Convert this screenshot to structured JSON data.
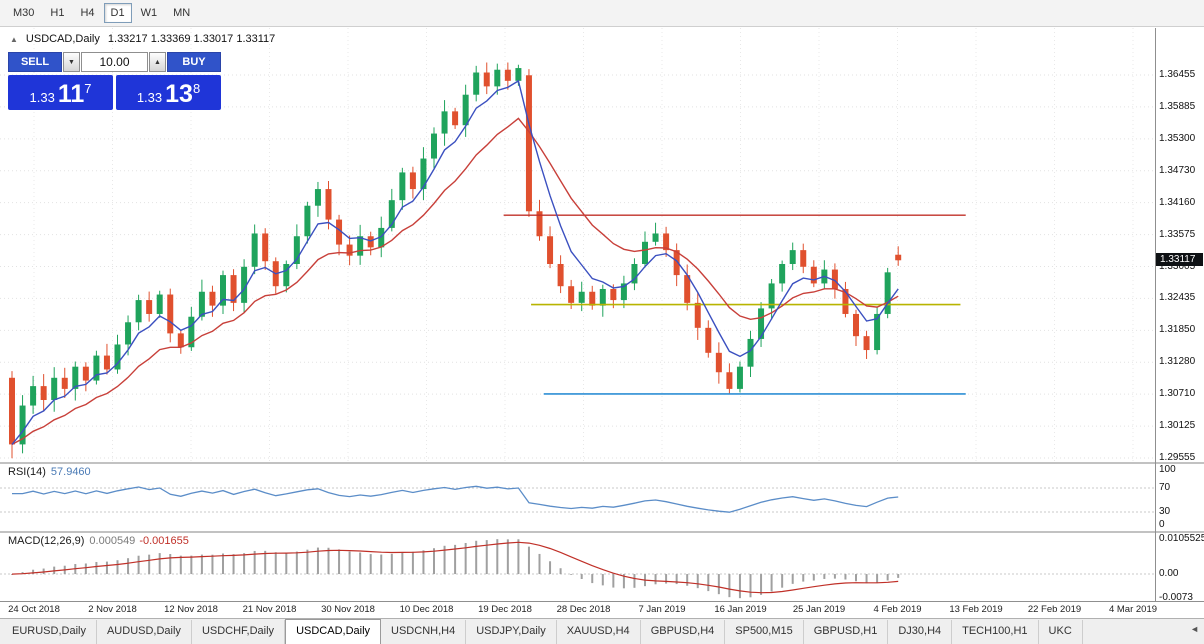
{
  "icons": {
    "collapse": "▲",
    "spin_down": "▼",
    "spin_up": "▲",
    "tab_scroll": "◄"
  },
  "colors": {
    "trade_button_blue": "#3053c9",
    "quote_box_blue": "#1f35d8",
    "badge_bg": "#0e1114"
  },
  "toolbar": {
    "timeframes": [
      {
        "label": "M30",
        "active": false
      },
      {
        "label": "H1",
        "active": false
      },
      {
        "label": "H4",
        "active": false
      },
      {
        "label": "D1",
        "active": true
      },
      {
        "label": "W1",
        "active": false
      },
      {
        "label": "MN",
        "active": false
      }
    ]
  },
  "chart": {
    "symbol": "USDCAD,Daily",
    "ohlc_line": "1.33217 1.33369 1.33017 1.33117",
    "current_price": "1.33117",
    "one_click": {
      "sell_label": "SELL",
      "buy_label": "BUY",
      "volume": "10.00",
      "sell_big": "1.33",
      "sell_mid": "11",
      "sell_sup": "7",
      "buy_big": "1.33",
      "buy_mid": "13",
      "buy_sup": "8"
    }
  },
  "chart_data": {
    "type": "candlestick",
    "title": "USDCAD Daily",
    "y_ticks": [
      "1.36455",
      "1.35885",
      "1.35300",
      "1.34730",
      "1.34160",
      "1.33575",
      "1.33005",
      "1.32435",
      "1.31850",
      "1.31280",
      "1.30710",
      "1.30125",
      "1.29555"
    ],
    "y_top": 1.36455,
    "y_bottom": 1.29555,
    "x_labels": [
      "24 Oct 2018",
      "2 Nov 2018",
      "12 Nov 2018",
      "21 Nov 2018",
      "30 Nov 2018",
      "10 Dec 2018",
      "19 Dec 2018",
      "28 Dec 2018",
      "7 Jan 2019",
      "16 Jan 2019",
      "25 Jan 2019",
      "4 Feb 2019",
      "13 Feb 2019",
      "22 Feb 2019",
      "4 Mar 2019"
    ],
    "first_open": 1.31,
    "closes": [
      1.298,
      1.305,
      1.3085,
      1.306,
      1.31,
      1.308,
      1.312,
      1.3095,
      1.314,
      1.3115,
      1.316,
      1.32,
      1.324,
      1.3215,
      1.325,
      1.318,
      1.3155,
      1.321,
      1.3255,
      1.323,
      1.3285,
      1.3235,
      1.33,
      1.336,
      1.331,
      1.3265,
      1.3305,
      1.3355,
      1.341,
      1.344,
      1.3385,
      1.334,
      1.332,
      1.3355,
      1.3335,
      1.337,
      1.342,
      1.347,
      1.344,
      1.3495,
      1.354,
      1.358,
      1.3555,
      1.361,
      1.365,
      1.3625,
      1.3655,
      1.3635,
      1.3658,
      1.34,
      1.3355,
      1.3305,
      1.3265,
      1.3235,
      1.3255,
      1.323,
      1.326,
      1.324,
      1.327,
      1.3305,
      1.3345,
      1.336,
      1.333,
      1.3285,
      1.3235,
      1.319,
      1.3145,
      1.311,
      1.308,
      1.312,
      1.317,
      1.3225,
      1.327,
      1.3305,
      1.333,
      1.33,
      1.327,
      1.3295,
      1.326,
      1.3215,
      1.3175,
      1.315,
      1.3215,
      1.329,
      1.33117
    ],
    "overrides": [
      {
        "i": 0,
        "o": 1.31,
        "h": 1.3112,
        "l": 1.2955,
        "c": 1.298
      },
      {
        "i": 44,
        "o": 1.361,
        "h": 1.3662,
        "l": 1.3598,
        "c": 1.365
      },
      {
        "i": 46,
        "o": 1.3625,
        "h": 1.3666,
        "l": 1.361,
        "c": 1.3655
      },
      {
        "i": 48,
        "o": 1.3635,
        "h": 1.3664,
        "l": 1.3626,
        "c": 1.3658
      },
      {
        "i": 49,
        "o": 1.3645,
        "h": 1.3656,
        "l": 1.339,
        "c": 1.34
      },
      {
        "i": 68,
        "o": 1.311,
        "h": 1.3126,
        "l": 1.307,
        "c": 1.308
      },
      {
        "i": 84,
        "o": 1.33217,
        "h": 1.33369,
        "l": 1.33017,
        "c": 1.33117
      }
    ],
    "up_color": "#1fa35c",
    "down_color": "#e0502e",
    "ma_fast": {
      "period": 5,
      "color": "#3b50c0"
    },
    "ma_slow": {
      "period": 13,
      "color": "#c8403a"
    },
    "hlines": [
      {
        "name": "resistance-line-red",
        "price": 1.3393,
        "color": "#c03028",
        "start_idx": 46.6,
        "end_idx": 90.4,
        "width": 1.4
      },
      {
        "name": "pivot-line-yellow",
        "price": 1.3232,
        "color": "#b8b400",
        "start_idx": 49.2,
        "end_idx": 89.9,
        "width": 1.6
      },
      {
        "name": "support-line-blue",
        "price": 1.3071,
        "color": "#2e8fd5",
        "start_idx": 50.4,
        "end_idx": 90.4,
        "width": 1.6
      }
    ],
    "indicators": {
      "rsi": {
        "name": "RSI(14)",
        "value": "57.9460",
        "period": 14,
        "color": "#5b8dc8",
        "levels": [
          {
            "label": "100",
            "v": 100
          },
          {
            "label": "70",
            "v": 70
          },
          {
            "label": "30",
            "v": 30
          },
          {
            "label": "0",
            "v": 0
          }
        ]
      },
      "macd": {
        "name": "MACD(12,26,9)",
        "value_main": "0.000549",
        "value_signal": "-0.001655",
        "fast": 12,
        "slow": 26,
        "signal": 9,
        "axis_top": 0.0105525,
        "axis_bottom": -0.0073,
        "axis_labels": {
          "top": "0.0105525",
          "zero": "0.00",
          "bottom": "-0.0073"
        },
        "hist_color": "#a0a0a0",
        "signal_color": "#c03028"
      }
    }
  },
  "tabs": {
    "items": [
      "EURUSD,Daily",
      "AUDUSD,Daily",
      "USDCHF,Daily",
      "USDCAD,Daily",
      "USDCNH,H4",
      "USDJPY,Daily",
      "XAUUSD,H4",
      "GBPUSD,H4",
      "SP500,M15",
      "GBPUSD,H1",
      "DJ30,H4",
      "TECH100,H1",
      "UKC"
    ],
    "active": "USDCAD,Daily"
  }
}
